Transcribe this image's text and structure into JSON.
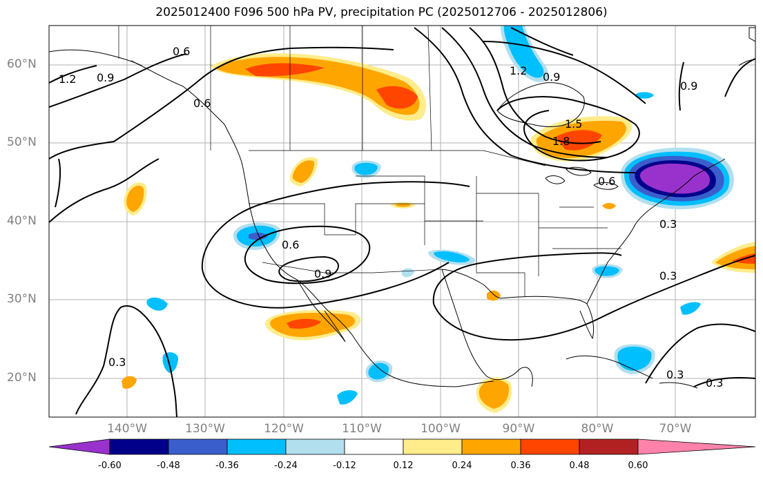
{
  "title": "2025012400 F096 500 hPa PV, precipitation PC (2025012706 - 2025012806)",
  "lat_labels": [
    "60°N",
    "50°N",
    "40°N",
    "30°N",
    "20°N"
  ],
  "lon_labels": [
    "140°W",
    "130°W",
    "120°W",
    "110°W",
    "100°W",
    "90°W",
    "80°W",
    "70°W"
  ],
  "contour_labels": [
    "0.6",
    "1.2",
    "0.9",
    "0.6",
    "1.2",
    "0.9",
    "0.9",
    "1.5",
    "1.8",
    "0.6",
    "0.6",
    "0.9",
    "0.3",
    "0.3",
    "0.3",
    "0.3",
    "0.3"
  ],
  "colorbar": {
    "ticks": [
      "-0.60",
      "-0.48",
      "-0.36",
      "-0.24",
      "-0.12",
      "0.12",
      "0.24",
      "0.36",
      "0.48",
      "0.60"
    ],
    "colors": [
      "#9932CC",
      "#00008B",
      "#3A5FCD",
      "#00BFFF",
      "#B2DFEE",
      "#FFFFFF",
      "#FFEC8B",
      "#FFA500",
      "#FF4500",
      "#B22222",
      "#FF82AB"
    ]
  },
  "colors": {
    "grid": "#b0b0b0",
    "axis_label": "#808080",
    "contour": "#000000"
  }
}
